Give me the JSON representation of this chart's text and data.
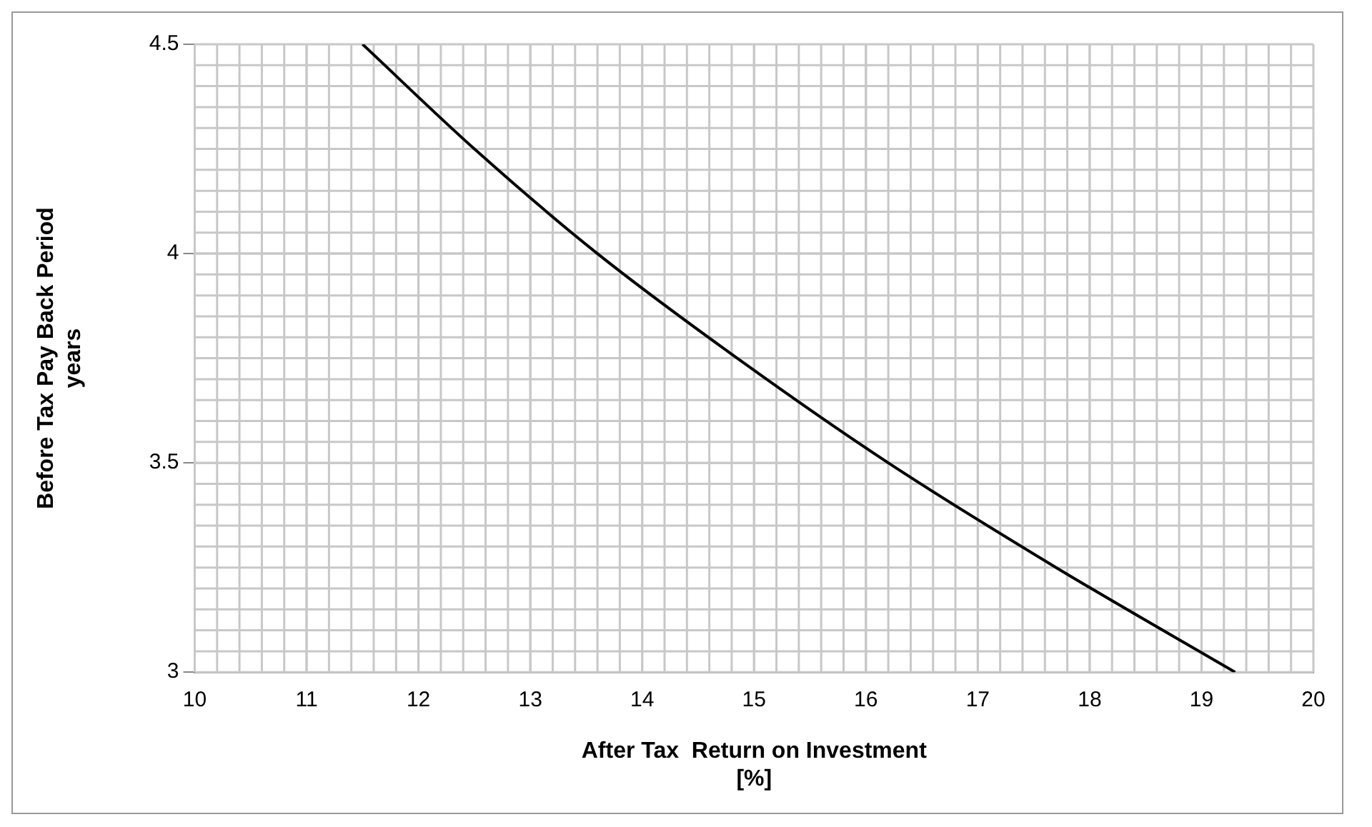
{
  "chart_data": {
    "type": "line",
    "xlabel": "After Tax  Return on Investment\n[%]",
    "ylabel": "Before Tax Pay Back Period\nyears",
    "x": [
      11.5,
      12.5,
      13.6,
      14.85,
      16.2,
      17.7,
      19.3
    ],
    "series": [
      {
        "color": "#000000",
        "values": [
          4.5,
          4.25,
          4.0,
          3.75,
          3.5,
          3.25,
          3.0
        ]
      }
    ],
    "xlim": [
      10,
      20
    ],
    "xticks": [
      10,
      11,
      12,
      13,
      14,
      15,
      16,
      17,
      18,
      19,
      20
    ],
    "ylim": [
      3,
      4.5
    ],
    "yticks": [
      3,
      3.5,
      4,
      4.5
    ],
    "grid": true,
    "legend": false,
    "marker": "none",
    "line_style": "solid"
  }
}
